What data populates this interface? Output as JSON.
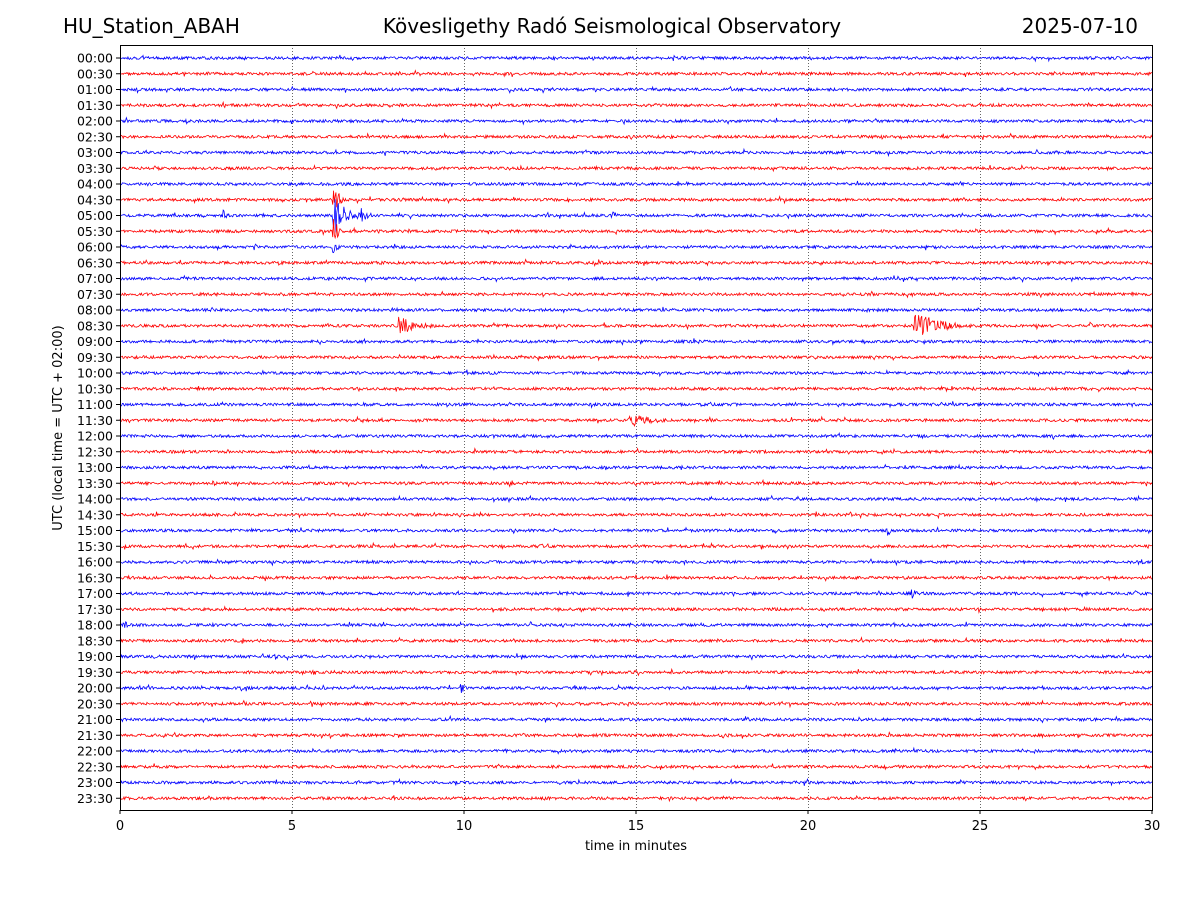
{
  "header": {
    "station": "HU_Station_ABAH",
    "observatory": "Kövesligethy Radó Seismological Observatory",
    "date": "2025-07-10"
  },
  "chart_data": {
    "type": "line",
    "title": "Kövesligethy Radó Seismological Observatory",
    "xlabel": "time in minutes",
    "ylabel": "UTC (local time = UTC + 02:00)",
    "xlim": [
      0,
      30
    ],
    "xticks": [
      "0",
      "5",
      "10",
      "15",
      "20",
      "25",
      "30"
    ],
    "grid": "vertical dotted lines at 5-minute intervals",
    "trace_colors": [
      "#0000ff",
      "#ff0000"
    ],
    "trace_labels": [
      "00:00",
      "00:30",
      "01:00",
      "01:30",
      "02:00",
      "02:30",
      "03:00",
      "03:30",
      "04:00",
      "04:30",
      "05:00",
      "05:30",
      "06:00",
      "06:30",
      "07:00",
      "07:30",
      "08:00",
      "08:30",
      "09:00",
      "09:30",
      "10:00",
      "10:30",
      "11:00",
      "11:30",
      "12:00",
      "12:30",
      "13:00",
      "13:30",
      "14:00",
      "14:30",
      "15:00",
      "15:30",
      "16:00",
      "16:30",
      "17:00",
      "17:30",
      "18:00",
      "18:30",
      "19:00",
      "19:30",
      "20:00",
      "20:30",
      "21:00",
      "21:30",
      "22:00",
      "22:30",
      "23:00",
      "23:30"
    ],
    "events": [
      {
        "trace": "04:30",
        "minute": 6.2,
        "amplitude": 1.8,
        "duration": 0.4
      },
      {
        "trace": "05:00",
        "minute": 3.0,
        "amplitude": 0.35,
        "duration": 0.4
      },
      {
        "trace": "05:00",
        "minute": 6.2,
        "amplitude": 1.4,
        "duration": 1.2
      },
      {
        "trace": "05:00",
        "minute": 7.0,
        "amplitude": 0.6,
        "duration": 0.8
      },
      {
        "trace": "05:00",
        "minute": 14.3,
        "amplitude": 0.6,
        "duration": 0.3
      },
      {
        "trace": "05:30",
        "minute": 6.2,
        "amplitude": 1.5,
        "duration": 0.3
      },
      {
        "trace": "06:00",
        "minute": 6.2,
        "amplitude": 1.2,
        "duration": 0.3
      },
      {
        "trace": "06:00",
        "minute": 3.9,
        "amplitude": 0.25,
        "duration": 0.5
      },
      {
        "trace": "06:00",
        "minute": 11.3,
        "amplitude": 0.2,
        "duration": 0.6
      },
      {
        "trace": "06:30",
        "minute": 13.8,
        "amplitude": 0.3,
        "duration": 1.2
      },
      {
        "trace": "06:30",
        "minute": 20.8,
        "amplitude": 0.2,
        "duration": 0.6
      },
      {
        "trace": "08:30",
        "minute": 8.1,
        "amplitude": 0.7,
        "duration": 1.8
      },
      {
        "trace": "08:30",
        "minute": 23.1,
        "amplitude": 1.0,
        "duration": 2.2
      },
      {
        "trace": "08:30",
        "minute": 28.2,
        "amplitude": 0.3,
        "duration": 0.3
      },
      {
        "trace": "11:30",
        "minute": 14.8,
        "amplitude": 0.45,
        "duration": 2.3
      },
      {
        "trace": "12:00",
        "minute": 11.5,
        "amplitude": 0.25,
        "duration": 0.2
      },
      {
        "trace": "13:30",
        "minute": 2.6,
        "amplitude": 0.3,
        "duration": 0.7
      },
      {
        "trace": "14:30",
        "minute": 21.2,
        "amplitude": 0.3,
        "duration": 0.3
      },
      {
        "trace": "15:00",
        "minute": 19.0,
        "amplitude": 0.25,
        "duration": 0.8
      },
      {
        "trace": "15:00",
        "minute": 22.3,
        "amplitude": 0.4,
        "duration": 0.4
      },
      {
        "trace": "15:30",
        "minute": 12.2,
        "amplitude": 0.3,
        "duration": 0.4
      },
      {
        "trace": "15:30",
        "minute": 18.6,
        "amplitude": 0.25,
        "duration": 0.5
      },
      {
        "trace": "16:00",
        "minute": 16.4,
        "amplitude": 0.35,
        "duration": 0.3
      },
      {
        "trace": "16:00",
        "minute": 29.7,
        "amplitude": 0.35,
        "duration": 0.2
      },
      {
        "trace": "17:00",
        "minute": 23.0,
        "amplitude": 0.35,
        "duration": 0.9
      },
      {
        "trace": "17:00",
        "minute": 29.5,
        "amplitude": 0.3,
        "duration": 0.3
      },
      {
        "trace": "17:30",
        "minute": 12.7,
        "amplitude": 0.25,
        "duration": 0.3
      },
      {
        "trace": "18:00",
        "minute": 0.1,
        "amplitude": 0.45,
        "duration": 0.4
      },
      {
        "trace": "18:00",
        "minute": 11.9,
        "amplitude": 0.3,
        "duration": 0.5
      },
      {
        "trace": "18:00",
        "minute": 14.8,
        "amplitude": 0.3,
        "duration": 0.2
      },
      {
        "trace": "18:00",
        "minute": 24.6,
        "amplitude": 0.25,
        "duration": 0.3
      },
      {
        "trace": "18:30",
        "minute": 3.5,
        "amplitude": 0.3,
        "duration": 0.4
      },
      {
        "trace": "19:00",
        "minute": 4.5,
        "amplitude": 0.25,
        "duration": 0.3
      },
      {
        "trace": "19:30",
        "minute": 5.6,
        "amplitude": 0.25,
        "duration": 0.5
      },
      {
        "trace": "19:30",
        "minute": 17.6,
        "amplitude": 0.25,
        "duration": 0.2
      },
      {
        "trace": "20:00",
        "minute": 9.9,
        "amplitude": 0.55,
        "duration": 0.3
      },
      {
        "trace": "22:30",
        "minute": 22.6,
        "amplitude": 0.15,
        "duration": 0.6
      }
    ]
  }
}
